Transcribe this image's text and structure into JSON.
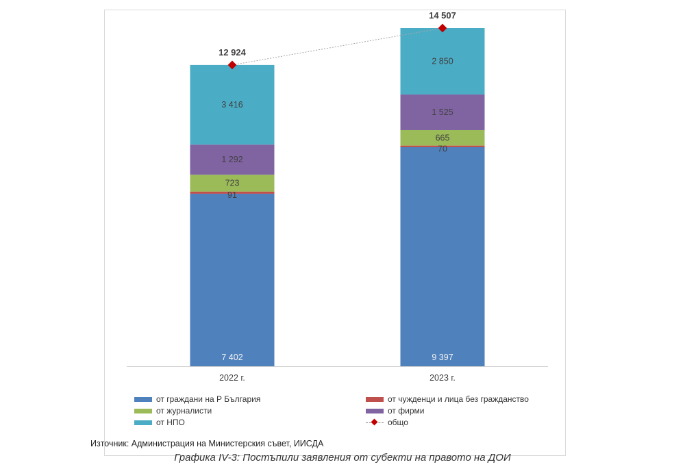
{
  "chart_data": {
    "type": "bar",
    "stacked": true,
    "categories": [
      "2022 г.",
      "2023 г."
    ],
    "series": [
      {
        "name": "от граждани на Р България",
        "color": "#4f81bd",
        "values": [
          7402,
          9397
        ],
        "labels": [
          "7 402",
          "9 397"
        ]
      },
      {
        "name": "от чужденци и лица без гражданство",
        "color": "#c0504d",
        "values": [
          91,
          70
        ],
        "labels": [
          "91",
          "70"
        ]
      },
      {
        "name": "от журналисти",
        "color": "#9bbb59",
        "values": [
          723,
          665
        ],
        "labels": [
          "723",
          "665"
        ]
      },
      {
        "name": "от фирми",
        "color": "#8064a2",
        "values": [
          1292,
          1525
        ],
        "labels": [
          "1 292",
          "1 525"
        ]
      },
      {
        "name": "от НПО",
        "color": "#4bacc6",
        "values": [
          3416,
          2850
        ],
        "labels": [
          "3 416",
          "2 850"
        ]
      }
    ],
    "total": {
      "name": "общо",
      "color": "#c00000",
      "values": [
        12924,
        14507
      ],
      "labels": [
        "12 924",
        "14 507"
      ]
    },
    "legend_position": "bottom",
    "grid": false
  },
  "source_text": "Източник: Администрация на Министерския съвет, ИИСДА",
  "caption": "Графика IV-3: Постъпили заявления от субекти на правото на ДОИ"
}
